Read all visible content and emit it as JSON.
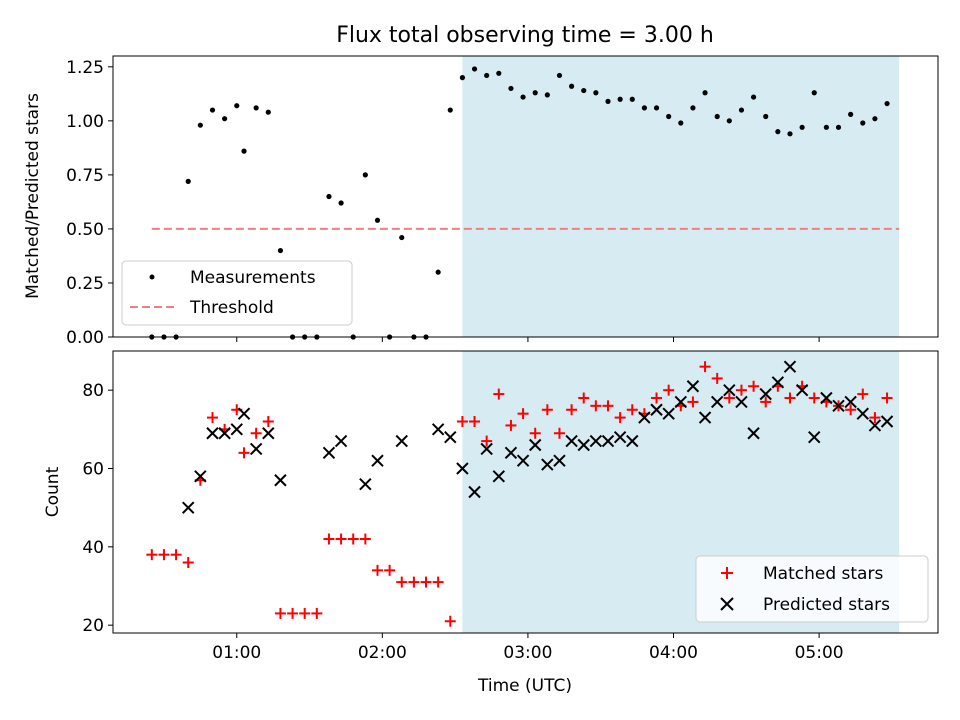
{
  "figure": {
    "title": "Flux total observing time = 3.00 h"
  },
  "chart_data": [
    {
      "type": "scatter",
      "panel": "top",
      "ylabel": "Matched/Predicted stars",
      "xlabel": "",
      "xlim": [
        "00:09",
        "05:49"
      ],
      "ylim": [
        0,
        1.3
      ],
      "yticks": [
        "0.00",
        "0.25",
        "0.50",
        "0.75",
        "1.00",
        "1.25"
      ],
      "shaded_region": {
        "from": "02:33",
        "to": "05:33",
        "color": "#add8e6"
      },
      "threshold": {
        "name": "Threshold",
        "value": 0.5,
        "from": "00:25",
        "to": "05:33",
        "color": "#f08080",
        "style": "dashed"
      },
      "legend": {
        "position": "lower-left",
        "entries": [
          "Measurements",
          "Threshold"
        ]
      },
      "series": [
        {
          "name": "Measurements",
          "marker": "dot",
          "color": "#000000",
          "points": [
            [
              "00:25",
              0.0
            ],
            [
              "00:30",
              0.0
            ],
            [
              "00:35",
              0.0
            ],
            [
              "00:40",
              0.72
            ],
            [
              "00:45",
              0.98
            ],
            [
              "00:50",
              1.05
            ],
            [
              "00:55",
              1.01
            ],
            [
              "01:00",
              1.07
            ],
            [
              "01:03",
              0.86
            ],
            [
              "01:08",
              1.06
            ],
            [
              "01:13",
              1.04
            ],
            [
              "01:18",
              0.4
            ],
            [
              "01:23",
              0.0
            ],
            [
              "01:28",
              0.0
            ],
            [
              "01:33",
              0.0
            ],
            [
              "01:38",
              0.65
            ],
            [
              "01:43",
              0.62
            ],
            [
              "01:48",
              0.0
            ],
            [
              "01:53",
              0.75
            ],
            [
              "01:58",
              0.54
            ],
            [
              "02:03",
              0.0
            ],
            [
              "02:08",
              0.46
            ],
            [
              "02:13",
              0.0
            ],
            [
              "02:18",
              0.0
            ],
            [
              "02:23",
              0.3
            ],
            [
              "02:28",
              1.05
            ],
            [
              "02:33",
              1.2
            ],
            [
              "02:38",
              1.24
            ],
            [
              "02:43",
              1.21
            ],
            [
              "02:48",
              1.22
            ],
            [
              "02:53",
              1.15
            ],
            [
              "02:58",
              1.11
            ],
            [
              "03:03",
              1.13
            ],
            [
              "03:08",
              1.12
            ],
            [
              "03:13",
              1.21
            ],
            [
              "03:18",
              1.16
            ],
            [
              "03:23",
              1.14
            ],
            [
              "03:28",
              1.13
            ],
            [
              "03:33",
              1.09
            ],
            [
              "03:38",
              1.1
            ],
            [
              "03:43",
              1.1
            ],
            [
              "03:48",
              1.06
            ],
            [
              "03:53",
              1.06
            ],
            [
              "03:58",
              1.02
            ],
            [
              "04:03",
              0.99
            ],
            [
              "04:08",
              1.06
            ],
            [
              "04:13",
              1.13
            ],
            [
              "04:18",
              1.02
            ],
            [
              "04:23",
              1.0
            ],
            [
              "04:28",
              1.05
            ],
            [
              "04:33",
              1.11
            ],
            [
              "04:38",
              1.02
            ],
            [
              "04:43",
              0.95
            ],
            [
              "04:48",
              0.94
            ],
            [
              "04:53",
              0.97
            ],
            [
              "04:58",
              1.13
            ],
            [
              "05:03",
              0.97
            ],
            [
              "05:08",
              0.97
            ],
            [
              "05:13",
              1.03
            ],
            [
              "05:18",
              0.99
            ],
            [
              "05:23",
              1.01
            ],
            [
              "05:28",
              1.08
            ]
          ]
        }
      ]
    },
    {
      "type": "scatter",
      "panel": "bottom",
      "ylabel": "Count",
      "xlabel": "Time (UTC)",
      "xlim": [
        "00:09",
        "05:49"
      ],
      "ylim": [
        18,
        90
      ],
      "yticks": [
        "20",
        "40",
        "60",
        "80"
      ],
      "xticks": [
        "01:00",
        "02:00",
        "03:00",
        "04:00",
        "05:00"
      ],
      "shaded_region": {
        "from": "02:33",
        "to": "05:33",
        "color": "#add8e6"
      },
      "legend": {
        "position": "lower-right",
        "entries": [
          "Matched stars",
          "Predicted stars"
        ]
      },
      "series": [
        {
          "name": "Matched stars",
          "marker": "plus",
          "color": "#ff0000",
          "points": [
            [
              "00:25",
              38
            ],
            [
              "00:30",
              38
            ],
            [
              "00:35",
              38
            ],
            [
              "00:40",
              36
            ],
            [
              "00:45",
              57
            ],
            [
              "00:50",
              73
            ],
            [
              "00:55",
              70
            ],
            [
              "01:00",
              75
            ],
            [
              "01:03",
              64
            ],
            [
              "01:08",
              69
            ],
            [
              "01:13",
              72
            ],
            [
              "01:18",
              23
            ],
            [
              "01:23",
              23
            ],
            [
              "01:28",
              23
            ],
            [
              "01:33",
              23
            ],
            [
              "01:38",
              42
            ],
            [
              "01:43",
              42
            ],
            [
              "01:48",
              42
            ],
            [
              "01:53",
              42
            ],
            [
              "01:58",
              34
            ],
            [
              "02:03",
              34
            ],
            [
              "02:08",
              31
            ],
            [
              "02:13",
              31
            ],
            [
              "02:18",
              31
            ],
            [
              "02:23",
              31
            ],
            [
              "02:28",
              21
            ],
            [
              "02:33",
              72
            ],
            [
              "02:38",
              72
            ],
            [
              "02:43",
              67
            ],
            [
              "02:48",
              79
            ],
            [
              "02:53",
              71
            ],
            [
              "02:58",
              74
            ],
            [
              "03:03",
              69
            ],
            [
              "03:08",
              75
            ],
            [
              "03:13",
              69
            ],
            [
              "03:18",
              75
            ],
            [
              "03:23",
              78
            ],
            [
              "03:28",
              76
            ],
            [
              "03:33",
              76
            ],
            [
              "03:38",
              73
            ],
            [
              "03:43",
              75
            ],
            [
              "03:48",
              74
            ],
            [
              "03:53",
              78
            ],
            [
              "03:58",
              80
            ],
            [
              "04:03",
              76
            ],
            [
              "04:08",
              77
            ],
            [
              "04:13",
              86
            ],
            [
              "04:18",
              83
            ],
            [
              "04:23",
              78
            ],
            [
              "04:28",
              80
            ],
            [
              "04:33",
              81
            ],
            [
              "04:38",
              77
            ],
            [
              "04:43",
              81
            ],
            [
              "04:48",
              78
            ],
            [
              "04:53",
              81
            ],
            [
              "04:58",
              78
            ],
            [
              "05:03",
              77
            ],
            [
              "05:08",
              76
            ],
            [
              "05:13",
              75
            ],
            [
              "05:18",
              79
            ],
            [
              "05:23",
              73
            ],
            [
              "05:28",
              78
            ]
          ]
        },
        {
          "name": "Predicted stars",
          "marker": "x",
          "color": "#000000",
          "points": [
            [
              "00:40",
              50
            ],
            [
              "00:45",
              58
            ],
            [
              "00:50",
              69
            ],
            [
              "00:55",
              69
            ],
            [
              "01:00",
              70
            ],
            [
              "01:03",
              74
            ],
            [
              "01:08",
              65
            ],
            [
              "01:13",
              69
            ],
            [
              "01:18",
              57
            ],
            [
              "01:38",
              64
            ],
            [
              "01:43",
              67
            ],
            [
              "01:53",
              56
            ],
            [
              "01:58",
              62
            ],
            [
              "02:08",
              67
            ],
            [
              "02:23",
              70
            ],
            [
              "02:28",
              68
            ],
            [
              "02:33",
              60
            ],
            [
              "02:38",
              54
            ],
            [
              "02:43",
              65
            ],
            [
              "02:48",
              58
            ],
            [
              "02:53",
              64
            ],
            [
              "02:58",
              62
            ],
            [
              "03:03",
              66
            ],
            [
              "03:08",
              61
            ],
            [
              "03:13",
              62
            ],
            [
              "03:18",
              67
            ],
            [
              "03:23",
              66
            ],
            [
              "03:28",
              67
            ],
            [
              "03:33",
              67
            ],
            [
              "03:38",
              68
            ],
            [
              "03:43",
              67
            ],
            [
              "03:48",
              73
            ],
            [
              "03:53",
              75
            ],
            [
              "03:58",
              74
            ],
            [
              "04:03",
              77
            ],
            [
              "04:08",
              81
            ],
            [
              "04:13",
              73
            ],
            [
              "04:18",
              77
            ],
            [
              "04:23",
              80
            ],
            [
              "04:28",
              77
            ],
            [
              "04:33",
              69
            ],
            [
              "04:38",
              79
            ],
            [
              "04:43",
              82
            ],
            [
              "04:48",
              86
            ],
            [
              "04:53",
              80
            ],
            [
              "04:58",
              68
            ],
            [
              "05:03",
              78
            ],
            [
              "05:08",
              76
            ],
            [
              "05:13",
              77
            ],
            [
              "05:18",
              74
            ],
            [
              "05:23",
              71
            ],
            [
              "05:28",
              72
            ]
          ]
        }
      ]
    }
  ]
}
